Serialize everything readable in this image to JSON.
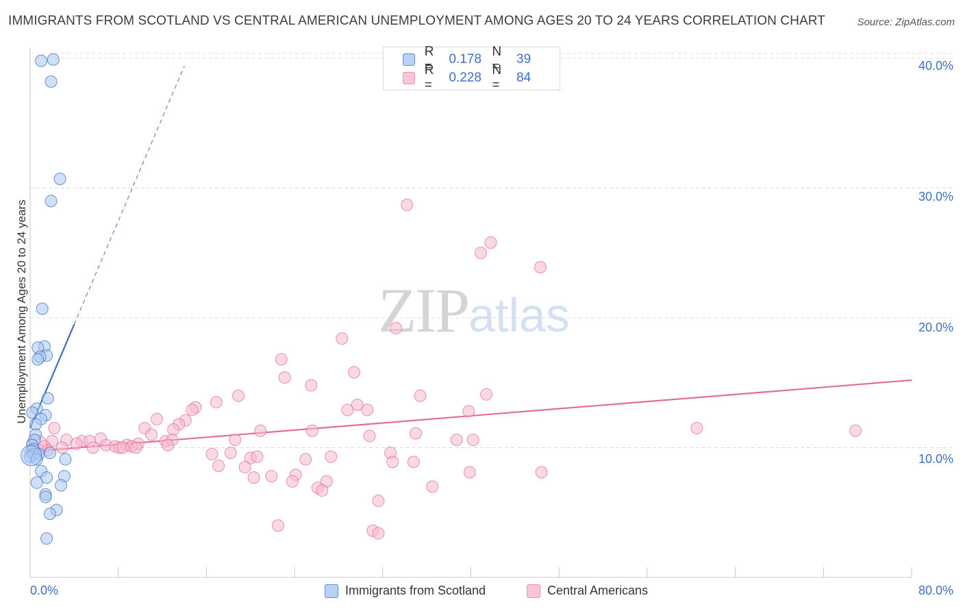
{
  "title": "IMMIGRANTS FROM SCOTLAND VS CENTRAL AMERICAN UNEMPLOYMENT AMONG AGES 20 TO 24 YEARS CORRELATION CHART",
  "source": "Source: ZipAtlas.com",
  "watermark": {
    "zip": "ZIP",
    "atlas": "atlas"
  },
  "colors": {
    "blue": "#3d6fc4",
    "blue_fill": "#a9c8f0",
    "pink": "#e26c9b",
    "pink_fill": "#f6b9cf"
  },
  "legend_top": {
    "rows": [
      {
        "r_label": "R =",
        "r_value": "0.178",
        "n_label": "N =",
        "n_value": "39"
      },
      {
        "r_label": "R =",
        "r_value": "0.228",
        "n_label": "N =",
        "n_value": "84"
      }
    ]
  },
  "chart_data": {
    "type": "scatter",
    "title": "IMMIGRANTS FROM SCOTLAND VS CENTRAL AMERICAN UNEMPLOYMENT AMONG AGES 20 TO 24 YEARS CORRELATION CHART",
    "xlabel": "",
    "ylabel": "Unemployment Among Ages 20 to 24 years",
    "x_tick_labels": {
      "min": "0.0%",
      "max": "80.0%"
    },
    "y_tick_labels": [
      "10.0%",
      "20.0%",
      "30.0%",
      "40.0%"
    ],
    "y_ticks": [
      10,
      20,
      30,
      40
    ],
    "xlim": [
      0,
      80
    ],
    "ylim": [
      0,
      40.9
    ],
    "grid": true,
    "legend_position": "bottom",
    "series": [
      {
        "name": "Immigrants from Scotland",
        "color": "#3d6fc4",
        "fill": "#a9c8f0",
        "R": 0.178,
        "N": 39,
        "trend_solid": [
          [
            0.0,
            11.5
          ],
          [
            4.0,
            19.5
          ]
        ],
        "trend_dashed": [
          [
            4.0,
            19.5
          ],
          [
            14.0,
            39.4
          ]
        ],
        "points": [
          [
            1.0,
            39.8
          ],
          [
            2.1,
            39.9
          ],
          [
            1.9,
            38.2
          ],
          [
            2.7,
            30.7
          ],
          [
            1.9,
            29.0
          ],
          [
            1.1,
            20.7
          ],
          [
            1.3,
            17.8
          ],
          [
            0.7,
            17.7
          ],
          [
            1.5,
            17.1
          ],
          [
            0.9,
            17.0
          ],
          [
            0.7,
            16.8
          ],
          [
            1.6,
            13.8
          ],
          [
            0.6,
            13.0
          ],
          [
            1.4,
            12.5
          ],
          [
            0.2,
            12.7
          ],
          [
            1.0,
            12.2
          ],
          [
            0.5,
            11.8
          ],
          [
            0.5,
            11.0
          ],
          [
            0.4,
            10.6
          ],
          [
            0.2,
            10.2
          ],
          [
            0.3,
            9.9
          ],
          [
            0.1,
            9.7
          ],
          [
            0.3,
            9.5
          ],
          [
            0.0,
            9.3
          ],
          [
            0.8,
            9.5
          ],
          [
            1.8,
            9.6
          ],
          [
            0.6,
            9.1
          ],
          [
            3.2,
            9.1
          ],
          [
            1.0,
            8.2
          ],
          [
            3.1,
            7.8
          ],
          [
            1.5,
            7.7
          ],
          [
            0.6,
            7.3
          ],
          [
            2.8,
            7.1
          ],
          [
            1.4,
            6.4
          ],
          [
            1.4,
            6.2
          ],
          [
            2.4,
            5.2
          ],
          [
            1.8,
            4.9
          ],
          [
            1.5,
            3.0
          ],
          [
            0.1,
            9.4
          ]
        ]
      },
      {
        "name": "Central Americans",
        "color": "#e26c9b",
        "fill": "#f6b9cf",
        "R": 0.228,
        "N": 84,
        "trend_solid": [
          [
            0.0,
            9.7
          ],
          [
            80.0,
            15.2
          ]
        ],
        "points": [
          [
            34.2,
            28.7
          ],
          [
            41.8,
            25.8
          ],
          [
            40.9,
            25.0
          ],
          [
            46.3,
            23.9
          ],
          [
            33.2,
            19.2
          ],
          [
            28.3,
            18.4
          ],
          [
            22.8,
            16.8
          ],
          [
            29.4,
            15.8
          ],
          [
            23.1,
            15.4
          ],
          [
            25.5,
            14.8
          ],
          [
            18.9,
            14.0
          ],
          [
            35.4,
            14.0
          ],
          [
            41.4,
            14.1
          ],
          [
            16.9,
            13.5
          ],
          [
            29.7,
            13.3
          ],
          [
            15.0,
            13.1
          ],
          [
            14.7,
            12.9
          ],
          [
            28.8,
            12.9
          ],
          [
            30.6,
            12.9
          ],
          [
            39.8,
            12.8
          ],
          [
            14.1,
            12.1
          ],
          [
            11.5,
            12.2
          ],
          [
            13.5,
            11.8
          ],
          [
            2.2,
            11.5
          ],
          [
            10.4,
            11.5
          ],
          [
            13.0,
            11.4
          ],
          [
            20.9,
            11.3
          ],
          [
            25.6,
            11.3
          ],
          [
            35.0,
            11.1
          ],
          [
            74.9,
            11.3
          ],
          [
            60.5,
            11.5
          ],
          [
            11.0,
            11.0
          ],
          [
            30.8,
            10.9
          ],
          [
            6.4,
            10.7
          ],
          [
            18.6,
            10.6
          ],
          [
            3.3,
            10.6
          ],
          [
            4.7,
            10.5
          ],
          [
            5.4,
            10.5
          ],
          [
            12.3,
            10.5
          ],
          [
            12.9,
            10.6
          ],
          [
            38.7,
            10.6
          ],
          [
            40.2,
            10.6
          ],
          [
            2.0,
            10.5
          ],
          [
            4.2,
            10.3
          ],
          [
            9.8,
            10.3
          ],
          [
            1.3,
            10.1
          ],
          [
            6.9,
            10.2
          ],
          [
            7.7,
            10.1
          ],
          [
            8.8,
            10.2
          ],
          [
            9.2,
            10.1
          ],
          [
            2.9,
            10.0
          ],
          [
            5.7,
            10.0
          ],
          [
            8.1,
            10.0
          ],
          [
            8.4,
            10.0
          ],
          [
            9.6,
            10.0
          ],
          [
            1.6,
            9.8
          ],
          [
            12.5,
            10.2
          ],
          [
            0.8,
            9.8
          ],
          [
            16.5,
            9.5
          ],
          [
            18.2,
            9.6
          ],
          [
            20.0,
            9.2
          ],
          [
            20.6,
            9.3
          ],
          [
            25.0,
            9.1
          ],
          [
            27.3,
            9.3
          ],
          [
            32.7,
            9.6
          ],
          [
            32.9,
            8.9
          ],
          [
            34.8,
            8.9
          ],
          [
            17.1,
            8.6
          ],
          [
            19.5,
            8.5
          ],
          [
            39.9,
            8.1
          ],
          [
            46.4,
            8.1
          ],
          [
            20.3,
            7.7
          ],
          [
            21.9,
            7.8
          ],
          [
            24.1,
            7.9
          ],
          [
            23.8,
            7.4
          ],
          [
            26.9,
            7.4
          ],
          [
            36.5,
            7.0
          ],
          [
            26.1,
            6.9
          ],
          [
            26.5,
            6.7
          ],
          [
            31.6,
            5.9
          ],
          [
            22.5,
            4.0
          ],
          [
            31.1,
            3.6
          ],
          [
            31.6,
            3.4
          ],
          [
            0.6,
            10.2
          ]
        ]
      }
    ]
  }
}
